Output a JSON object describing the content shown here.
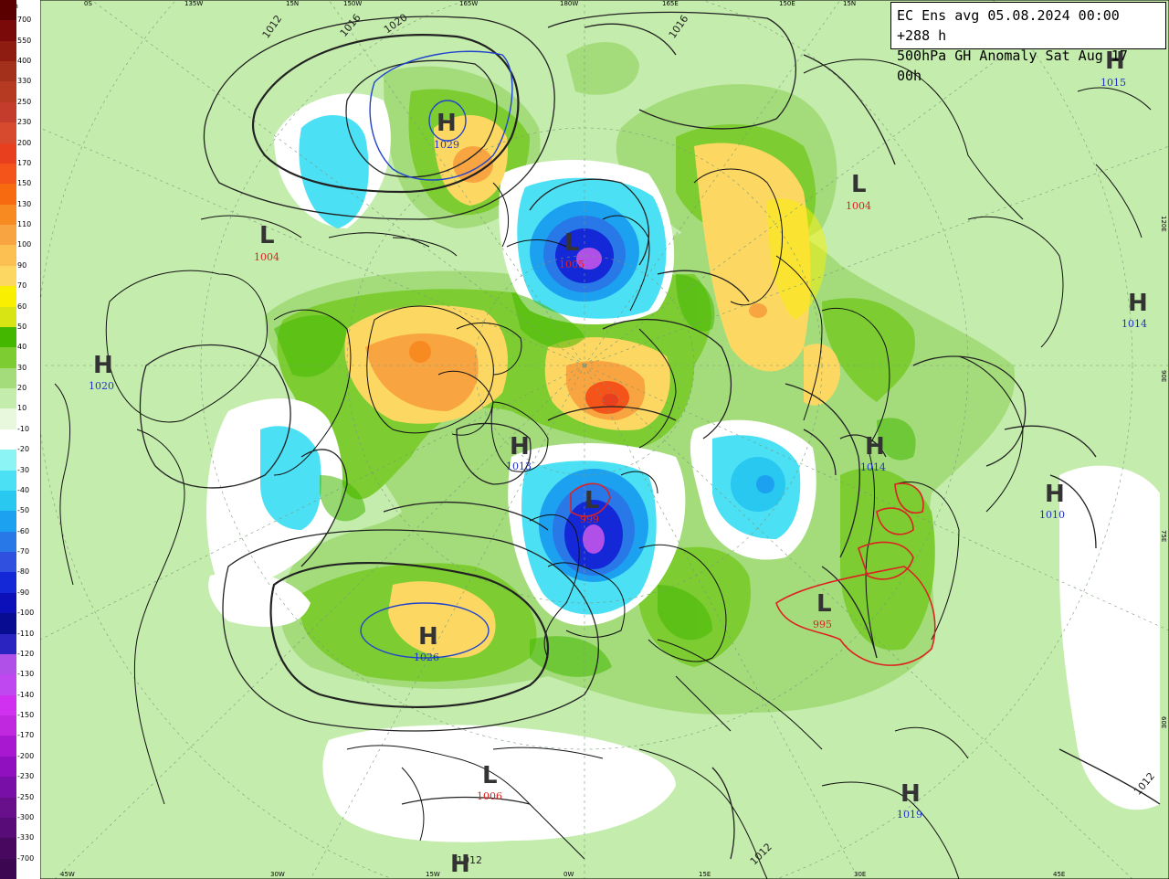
{
  "title": {
    "line1": "EC Ens avg 05.08.2024 00:00 +288 h",
    "line2": "500hPa GH Anomaly Sat Aug 17 00h"
  },
  "legend": {
    "unit": "gpm",
    "bins": [
      {
        "color": "#5a0000",
        "label": ""
      },
      {
        "color": "#7a0a0a",
        "label": "700"
      },
      {
        "color": "#8e1c10",
        "label": "550"
      },
      {
        "color": "#a2301a",
        "label": "400"
      },
      {
        "color": "#b63a22",
        "label": "330"
      },
      {
        "color": "#c43c2c",
        "label": "250"
      },
      {
        "color": "#d84a2e",
        "label": "230"
      },
      {
        "color": "#e8401e",
        "label": "200"
      },
      {
        "color": "#f4541a",
        "label": "170"
      },
      {
        "color": "#f86a10",
        "label": "150"
      },
      {
        "color": "#f88a22",
        "label": "130"
      },
      {
        "color": "#f8a440",
        "label": "110"
      },
      {
        "color": "#fcc052",
        "label": "100"
      },
      {
        "color": "#fcd862",
        "label": "90"
      },
      {
        "color": "#f8f000",
        "label": "70"
      },
      {
        "color": "#d8e414",
        "label": "60"
      },
      {
        "color": "#44b800",
        "label": "50"
      },
      {
        "color": "#7ccc32",
        "label": "40"
      },
      {
        "color": "#a4dc7c",
        "label": "30"
      },
      {
        "color": "#c4ecac",
        "label": "20"
      },
      {
        "color": "#e8f8dc",
        "label": "10"
      },
      {
        "color": "#ffffff",
        "label": "-10"
      },
      {
        "color": "#8cf4f4",
        "label": "-20"
      },
      {
        "color": "#4ce0f4",
        "label": "-30"
      },
      {
        "color": "#28c8f0",
        "label": "-40"
      },
      {
        "color": "#1ca0f0",
        "label": "-50"
      },
      {
        "color": "#2878e8",
        "label": "-60"
      },
      {
        "color": "#3050e0",
        "label": "-70"
      },
      {
        "color": "#1428d8",
        "label": "-80"
      },
      {
        "color": "#0c10b8",
        "label": "-90"
      },
      {
        "color": "#080c90",
        "label": "-100"
      },
      {
        "color": "#2c24c0",
        "label": "-110"
      },
      {
        "color": "#b050e8",
        "label": "-120"
      },
      {
        "color": "#c048f0",
        "label": "-130"
      },
      {
        "color": "#d030f0",
        "label": "-140"
      },
      {
        "color": "#c028e0",
        "label": "-150"
      },
      {
        "color": "#a818d0",
        "label": "-170"
      },
      {
        "color": "#9010c0",
        "label": "-200"
      },
      {
        "color": "#7810a8",
        "label": "-230"
      },
      {
        "color": "#68108c",
        "label": "-250"
      },
      {
        "color": "#580c78",
        "label": "-300"
      },
      {
        "color": "#480860",
        "label": "-330"
      },
      {
        "color": "#3c0650",
        "label": "-700"
      }
    ]
  },
  "longitude_labels_top": [
    "0S",
    "135W",
    "15N",
    "150W",
    "165W",
    "180W",
    "165E",
    "150E",
    "15N"
  ],
  "longitude_labels_bottom": [
    "45W",
    "30W",
    "15W",
    "0W",
    "15E",
    "30E",
    "45E"
  ],
  "right_edge_labels": [
    "120E",
    "90E",
    "75E",
    "60E"
  ],
  "pressure_centers": [
    {
      "type": "H",
      "value": "1029",
      "color": "#2233cc"
    },
    {
      "type": "L",
      "value": "1004",
      "color": "#dd2222"
    },
    {
      "type": "L",
      "value": "1005",
      "color": "#dd2222"
    },
    {
      "type": "L",
      "value": "1004",
      "color": "#dd2222"
    },
    {
      "type": "H",
      "value": "1015",
      "color": "#2233cc"
    },
    {
      "type": "H",
      "value": "1014",
      "color": "#2233cc"
    },
    {
      "type": "H",
      "value": "1020",
      "color": "#2233cc"
    },
    {
      "type": "H",
      "value": "1013",
      "color": "#2233cc"
    },
    {
      "type": "H",
      "value": "1014",
      "color": "#2233cc"
    },
    {
      "type": "H",
      "value": "1010",
      "color": "#2233cc"
    },
    {
      "type": "L",
      "value": "999",
      "color": "#dd2222"
    },
    {
      "type": "L",
      "value": "995",
      "color": "#dd2222"
    },
    {
      "type": "H",
      "value": "1026",
      "color": "#2233cc"
    },
    {
      "type": "L",
      "value": "1006",
      "color": "#dd2222"
    },
    {
      "type": "H",
      "value": "1019",
      "color": "#2233cc"
    },
    {
      "type": "H",
      "value": "",
      "color": "#2233cc"
    }
  ],
  "isobar_labels": [
    "1012",
    "1016",
    "1020",
    "1016",
    "1012",
    "1012",
    "1012"
  ]
}
